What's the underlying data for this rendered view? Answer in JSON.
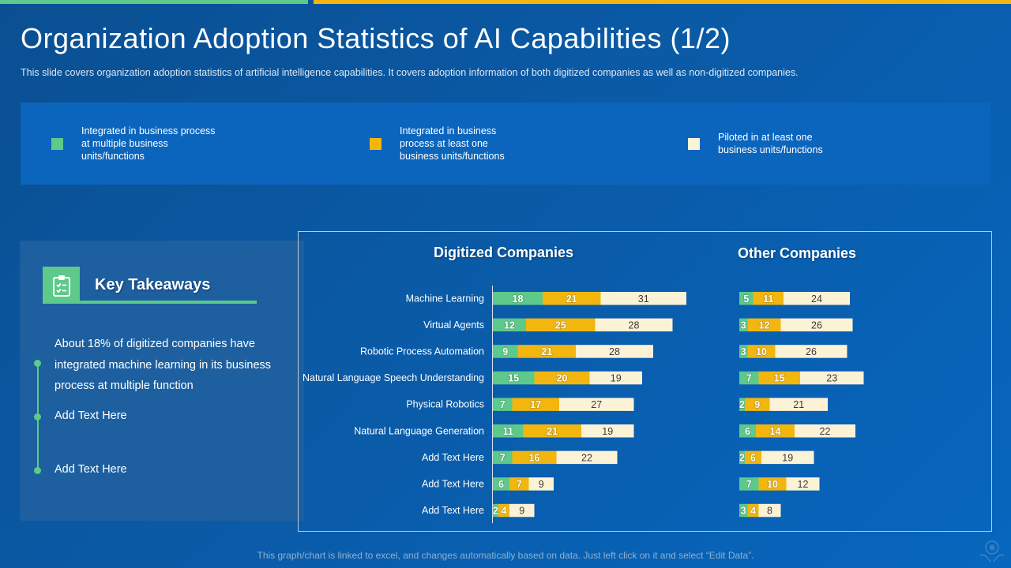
{
  "page": {
    "title": "Organization Adoption Statistics of AI Capabilities (1/2)",
    "subtitle": "This slide covers organization adoption statistics of artificial intelligence capabilities. It covers adoption information of both digitized companies as well as non-digitized companies.",
    "footer": "This graph/chart is linked to excel, and changes automatically based on data. Just left click on it and select “Edit Data”."
  },
  "colors": {
    "green": "#5dc98a",
    "yellow": "#f2b60f",
    "cream": "#fcf2d6",
    "background": "#0a5aa6"
  },
  "legend": [
    {
      "label": "Integrated in business process at multiple business units/functions",
      "lines": [
        "Integrated in business process",
        "at multiple business",
        "units/functions"
      ],
      "color": "#5dc98a"
    },
    {
      "label": "Integrated in business process at least one business units/functions",
      "lines": [
        "Integrated in business",
        "process at least one",
        "business units/functions"
      ],
      "color": "#f2b60f"
    },
    {
      "label": "Piloted in at least one business units/functions",
      "lines": [
        "Piloted in at least one",
        "business units/functions"
      ],
      "color": "#fcf2d6"
    }
  ],
  "takeaways": {
    "title": "Key Takeaways",
    "icon": "clipboard-check-icon",
    "items": [
      "About 18% of digitized companies have integrated machine learning in its business process at multiple function",
      "Add Text Here",
      "Add Text Here"
    ]
  },
  "chart_data": [
    {
      "type": "bar",
      "orientation": "horizontal",
      "stacked": true,
      "title": "Digitized Companies",
      "categories": [
        "Machine Learning",
        "Virtual Agents",
        "Robotic Process Automation",
        "Natural Language Speech Understanding",
        "Physical Robotics",
        "Natural Language Generation",
        "Add Text Here",
        "Add Text Here",
        "Add Text Here"
      ],
      "series": [
        {
          "name": "Integrated in business process at multiple business units/functions",
          "color": "#5dc98a",
          "values": [
            18,
            12,
            9,
            15,
            7,
            11,
            7,
            6,
            2
          ]
        },
        {
          "name": "Integrated in business process at least one business units/functions",
          "color": "#f2b60f",
          "values": [
            21,
            25,
            21,
            20,
            17,
            21,
            16,
            7,
            4
          ]
        },
        {
          "name": "Piloted in at least one business units/functions",
          "color": "#fcf2d6",
          "values": [
            31,
            28,
            28,
            19,
            27,
            19,
            22,
            9,
            9
          ]
        }
      ],
      "xlim": [
        0,
        70
      ],
      "data_labels": true
    },
    {
      "type": "bar",
      "orientation": "horizontal",
      "stacked": true,
      "title": "Other Companies",
      "categories": [
        "Machine Learning",
        "Virtual Agents",
        "Robotic Process Automation",
        "Natural Language Speech Understanding",
        "Physical Robotics",
        "Natural Language Generation",
        "Add Text Here",
        "Add Text Here",
        "Add Text Here"
      ],
      "series": [
        {
          "name": "Integrated in business process at multiple business units/functions",
          "color": "#5dc98a",
          "values": [
            5,
            3,
            3,
            7,
            2,
            6,
            2,
            7,
            3
          ]
        },
        {
          "name": "Integrated in business process at least one business units/functions",
          "color": "#f2b60f",
          "values": [
            11,
            12,
            10,
            15,
            9,
            14,
            6,
            10,
            4
          ]
        },
        {
          "name": "Piloted in at least one business units/functions",
          "color": "#fcf2d6",
          "values": [
            24,
            26,
            26,
            23,
            21,
            22,
            19,
            12,
            8
          ]
        }
      ],
      "xlim": [
        0,
        70
      ],
      "data_labels": true
    }
  ]
}
